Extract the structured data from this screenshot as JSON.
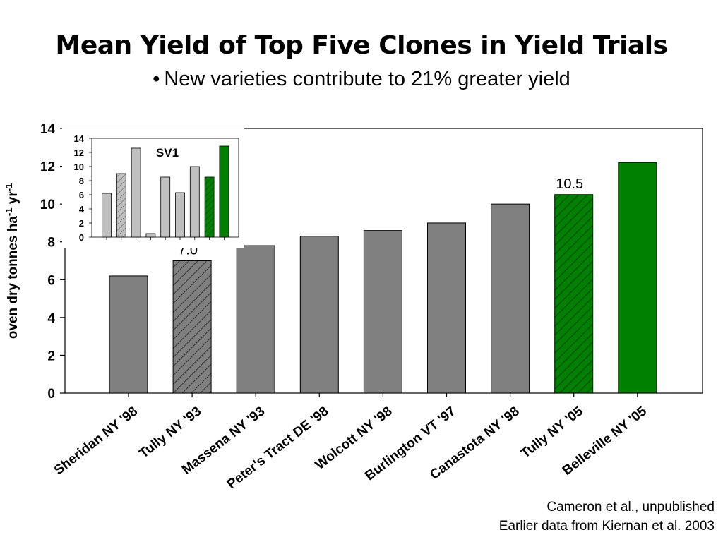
{
  "title": "Mean Yield of Top Five Clones in Yield Trials",
  "subtitle": "New varieties contribute to 21% greater yield",
  "bullet": "•",
  "footnotes": [
    "Cameron et al., unpublished",
    "Earlier data from Kiernan et al. 2003"
  ],
  "colors": {
    "gray": "#808080",
    "green": "#008000",
    "light_gray": "#c0c0c0"
  },
  "chart_data": [
    {
      "type": "bar",
      "ylabel": "oven dry tonnes ha-1 yr-1",
      "ylim": [
        0,
        14
      ],
      "yticks": [
        0,
        2,
        4,
        6,
        8,
        10,
        12,
        14
      ],
      "categories": [
        "Sheridan NY '98",
        "Tully NY '93",
        "Massena NY '93",
        "Peter's Tract DE '98",
        "Wolcott NY '98",
        "Burlington VT '97",
        "Canastota NY '98",
        "Tully NY '05",
        "Belleville NY '05"
      ],
      "values": [
        6.2,
        7.0,
        7.8,
        8.3,
        8.6,
        9.0,
        10.0,
        10.5,
        12.2
      ],
      "styles": [
        "gray",
        "gray-hatched",
        "gray",
        "gray",
        "gray",
        "gray",
        "gray",
        "green-hatched",
        "green"
      ],
      "data_labels": [
        null,
        "7.0",
        null,
        null,
        null,
        null,
        null,
        "10.5",
        null
      ],
      "grid": false
    },
    {
      "type": "bar",
      "title": "SV1",
      "ylim": [
        0,
        14
      ],
      "yticks": [
        0,
        2,
        4,
        6,
        8,
        10,
        12,
        14
      ],
      "values": [
        6.2,
        9.0,
        12.6,
        0.5,
        8.5,
        6.3,
        10.0,
        8.5,
        12.9
      ],
      "styles": [
        "light",
        "light-hatched",
        "light",
        "light",
        "light",
        "light",
        "light",
        "green-hatched",
        "green"
      ]
    }
  ]
}
